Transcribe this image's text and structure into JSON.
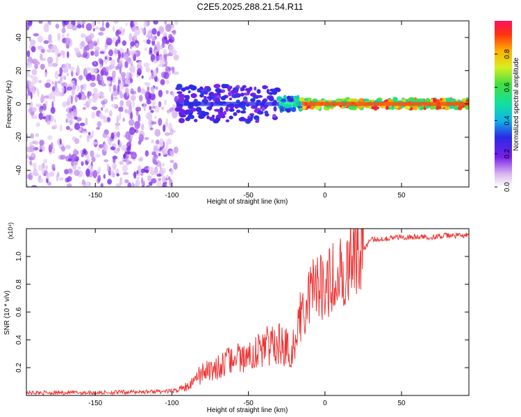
{
  "title": "C2E5.2025.288.21.54.R11",
  "chart_data": [
    {
      "type": "heatmap",
      "name": "spectrogram",
      "xlabel": "Height of straight line (km)",
      "ylabel": "Frequency (Hz)",
      "xlim": [
        -195,
        94
      ],
      "ylim": [
        -50,
        50
      ],
      "xticks": [
        -150,
        -100,
        -50,
        0,
        50
      ],
      "yticks": [
        -40,
        -20,
        0,
        20,
        40
      ],
      "colorbar": {
        "label": "Normalized spectral amplitude",
        "range": [
          0.0,
          1.0
        ],
        "ticks": [
          0.0,
          0.2,
          0.4,
          0.6,
          0.8
        ],
        "tick_labels": [
          "0.0",
          "0.2",
          "0.4",
          "0.6",
          "0.8"
        ]
      },
      "regions": [
        {
          "x_range": [
            -195,
            -97
          ],
          "description": "scattered noise",
          "amplitude": 0.1
        },
        {
          "x_range": [
            -97,
            -30
          ],
          "center_hz": 0,
          "width_hz": 10,
          "amplitude": 0.3
        },
        {
          "x_range": [
            -30,
            -15
          ],
          "center_hz": 0,
          "width_hz": 6,
          "amplitude": 0.5
        },
        {
          "x_range": [
            -15,
            94
          ],
          "center_hz": 0,
          "width_hz": 4,
          "amplitude": 0.9
        }
      ]
    },
    {
      "type": "line",
      "name": "snr",
      "xlabel": "Height of straight line (km)",
      "ylabel": "SNR (10 * v/v)",
      "y_multiplier": "(x10⁴)",
      "xlim": [
        -195,
        94
      ],
      "ylim": [
        0,
        1.2
      ],
      "xticks": [
        -150,
        -100,
        -50,
        0,
        50
      ],
      "yticks": [
        0.2,
        0.4,
        0.6,
        0.8,
        1.0
      ],
      "ytick_labels": [
        "0.2",
        "0.4",
        "0.6",
        "0.8",
        "1.0"
      ],
      "series": [
        {
          "name": "SNR",
          "color": "#ee3333",
          "x": [
            -195,
            -150,
            -100,
            -90,
            -85,
            -80,
            -70,
            -60,
            -50,
            -40,
            -30,
            -20,
            -18,
            -15,
            -10,
            -5,
            0,
            5,
            10,
            15,
            20,
            25,
            30,
            40,
            50,
            60,
            70,
            80,
            94
          ],
          "y": [
            0.02,
            0.02,
            0.03,
            0.05,
            0.1,
            0.14,
            0.18,
            0.22,
            0.25,
            0.3,
            0.32,
            0.3,
            0.4,
            0.55,
            0.65,
            0.7,
            0.68,
            0.75,
            0.8,
            0.9,
            0.95,
            1.05,
            1.12,
            1.13,
            1.14,
            1.14,
            1.14,
            1.15,
            1.15
          ]
        }
      ]
    }
  ]
}
